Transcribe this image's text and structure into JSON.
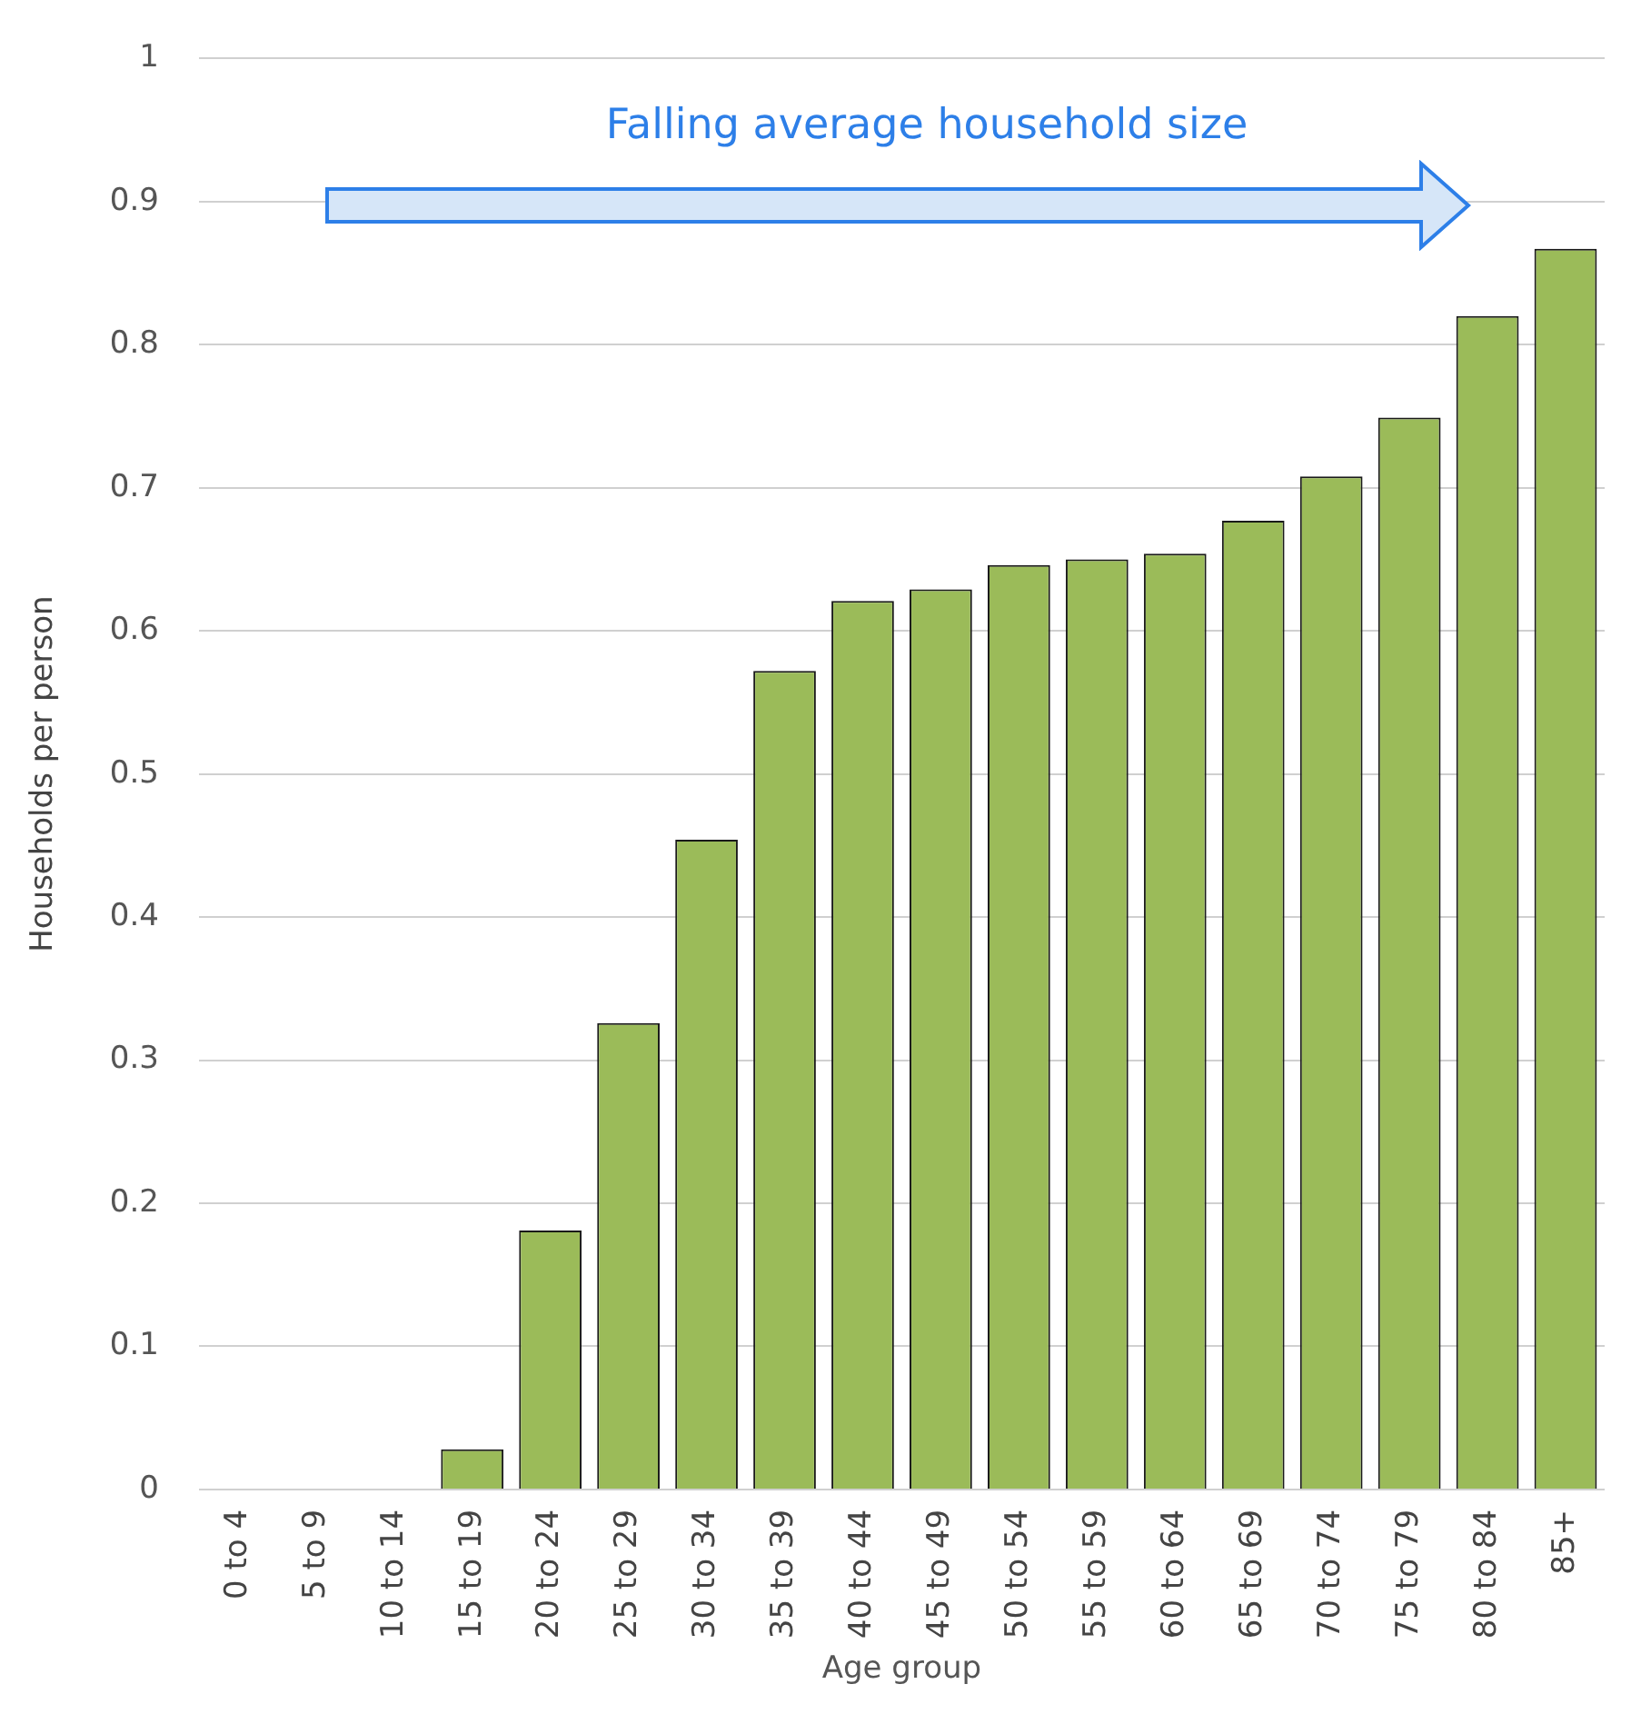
{
  "chart_data": {
    "type": "bar",
    "xlabel": "Age group",
    "ylabel": "Households per person",
    "categories": [
      "0 to 4",
      "5 to 9",
      "10 to 14",
      "15 to 19",
      "20 to 24",
      "25 to 29",
      "30 to 34",
      "35 to 39",
      "40 to 44",
      "45 to 49",
      "50 to 54",
      "55 to 59",
      "60 to 64",
      "65 to 69",
      "70 to 74",
      "75 to 79",
      "80 to 84",
      "85+"
    ],
    "values": [
      0,
      0,
      0,
      0.028,
      0.181,
      0.326,
      0.454,
      0.572,
      0.621,
      0.629,
      0.646,
      0.65,
      0.654,
      0.677,
      0.708,
      0.749,
      0.82,
      0.867
    ],
    "color": "#9bbb59",
    "ylim": [
      0,
      1
    ],
    "yticks": [
      0,
      0.1,
      0.2,
      0.3,
      0.4,
      0.5,
      0.6,
      0.7,
      0.8,
      0.9,
      1
    ],
    "grid": "y",
    "legend": false,
    "annotations": [
      "Falling average household size"
    ]
  }
}
